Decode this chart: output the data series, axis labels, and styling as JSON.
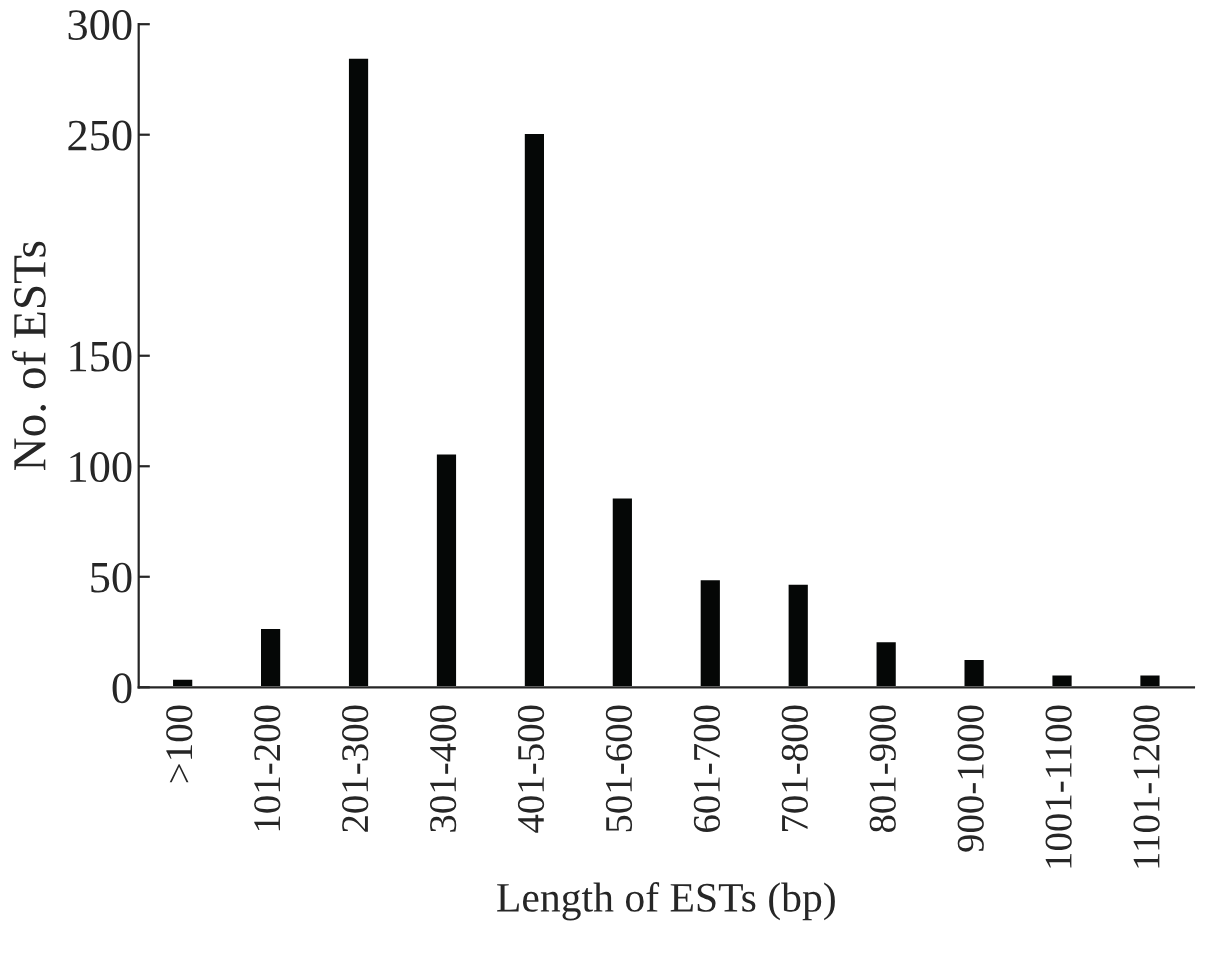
{
  "chart_data": {
    "type": "bar",
    "xlabel": "Length of ESTs (bp)",
    "ylabel": "No. of ESTs",
    "categories": [
      ">100",
      "101-200",
      "201-300",
      "301-400",
      "401-500",
      "501-600",
      "601-700",
      "701-800",
      "801-900",
      "900-1000",
      "1001-1100",
      "1101-1200"
    ],
    "values": [
      4,
      27,
      285,
      106,
      251,
      86,
      49,
      47,
      21,
      13,
      6,
      6
    ],
    "color": "#050706",
    "ylim": [
      0,
      300
    ],
    "yticks": [
      0,
      50,
      100,
      150,
      250,
      300
    ],
    "grid": false,
    "legend": false
  }
}
